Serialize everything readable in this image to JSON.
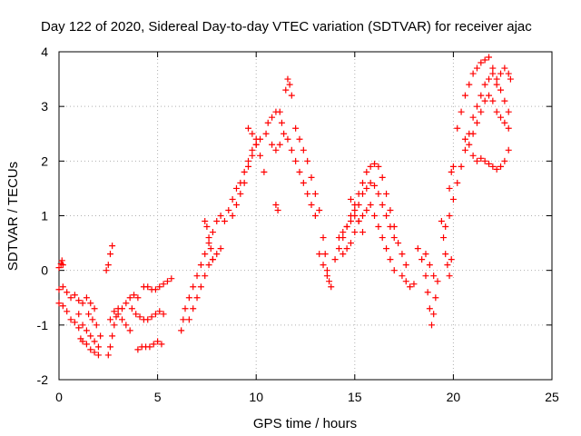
{
  "chart_data": {
    "type": "scatter",
    "title": "Day 122 of 2020, Sidereal Day-to-day VTEC variation (SDTVAR) for receiver ajac",
    "xlabel": "GPS time / hours",
    "ylabel": "SDTVAR / TECUs",
    "xlim": [
      0,
      25
    ],
    "ylim": [
      -2,
      4
    ],
    "xticks": [
      0,
      5,
      10,
      15,
      20,
      25
    ],
    "yticks": [
      -2,
      -1,
      0,
      1,
      2,
      3,
      4
    ],
    "xtick_labels": [
      "0",
      "5",
      "10",
      "15",
      "20",
      "25"
    ],
    "ytick_labels": [
      "-2",
      "-1",
      "0",
      "1",
      "2",
      "3",
      "4"
    ],
    "grid": true,
    "marker": "+",
    "color": "#ff0000",
    "series": [
      {
        "name": "SDTVAR",
        "points": [
          [
            0.0,
            0.05
          ],
          [
            0.1,
            0.12
          ],
          [
            0.15,
            0.18
          ],
          [
            0.2,
            0.1
          ],
          [
            0.0,
            -0.35
          ],
          [
            0.2,
            -0.3
          ],
          [
            0.4,
            -0.4
          ],
          [
            0.6,
            -0.5
          ],
          [
            0.8,
            -0.45
          ],
          [
            1.0,
            -0.55
          ],
          [
            1.2,
            -0.6
          ],
          [
            1.4,
            -0.5
          ],
          [
            1.6,
            -0.6
          ],
          [
            1.8,
            -0.7
          ],
          [
            0.0,
            -0.6
          ],
          [
            0.2,
            -0.65
          ],
          [
            0.4,
            -0.75
          ],
          [
            0.6,
            -0.9
          ],
          [
            0.8,
            -0.95
          ],
          [
            1.0,
            -1.05
          ],
          [
            1.1,
            -1.25
          ],
          [
            1.2,
            -1.3
          ],
          [
            1.4,
            -1.35
          ],
          [
            1.6,
            -1.45
          ],
          [
            1.8,
            -1.5
          ],
          [
            2.0,
            -1.55
          ],
          [
            1.0,
            -0.8
          ],
          [
            1.2,
            -1.0
          ],
          [
            1.4,
            -1.1
          ],
          [
            1.6,
            -1.2
          ],
          [
            1.8,
            -1.3
          ],
          [
            2.0,
            -1.4
          ],
          [
            1.5,
            -0.8
          ],
          [
            1.7,
            -0.9
          ],
          [
            1.9,
            -1.0
          ],
          [
            2.1,
            -1.2
          ],
          [
            2.4,
            0.0
          ],
          [
            2.5,
            0.1
          ],
          [
            2.6,
            0.3
          ],
          [
            2.7,
            0.45
          ],
          [
            2.5,
            -1.55
          ],
          [
            2.6,
            -1.4
          ],
          [
            2.7,
            -1.2
          ],
          [
            2.8,
            -1.0
          ],
          [
            2.9,
            -0.85
          ],
          [
            3.0,
            -0.8
          ],
          [
            3.2,
            -0.9
          ],
          [
            3.4,
            -1.0
          ],
          [
            3.6,
            -1.1
          ],
          [
            2.6,
            -0.9
          ],
          [
            2.8,
            -0.75
          ],
          [
            3.0,
            -0.7
          ],
          [
            3.2,
            -0.7
          ],
          [
            3.4,
            -0.6
          ],
          [
            3.6,
            -0.5
          ],
          [
            3.8,
            -0.45
          ],
          [
            4.0,
            -0.5
          ],
          [
            3.7,
            -0.7
          ],
          [
            3.9,
            -0.8
          ],
          [
            4.1,
            -0.85
          ],
          [
            4.3,
            -0.9
          ],
          [
            4.5,
            -0.9
          ],
          [
            4.7,
            -0.85
          ],
          [
            4.9,
            -0.8
          ],
          [
            5.1,
            -0.75
          ],
          [
            5.3,
            -0.8
          ],
          [
            4.0,
            -1.45
          ],
          [
            4.2,
            -1.4
          ],
          [
            4.4,
            -1.4
          ],
          [
            4.6,
            -1.4
          ],
          [
            4.8,
            -1.35
          ],
          [
            5.0,
            -1.3
          ],
          [
            5.2,
            -1.35
          ],
          [
            4.3,
            -0.3
          ],
          [
            4.5,
            -0.3
          ],
          [
            4.7,
            -0.35
          ],
          [
            4.9,
            -0.35
          ],
          [
            5.1,
            -0.3
          ],
          [
            5.3,
            -0.25
          ],
          [
            5.5,
            -0.2
          ],
          [
            5.7,
            -0.15
          ],
          [
            6.2,
            -1.1
          ],
          [
            6.3,
            -0.9
          ],
          [
            6.4,
            -0.7
          ],
          [
            6.6,
            -0.5
          ],
          [
            6.8,
            -0.3
          ],
          [
            7.0,
            -0.1
          ],
          [
            7.2,
            0.1
          ],
          [
            7.4,
            0.3
          ],
          [
            7.6,
            0.5
          ],
          [
            7.8,
            0.7
          ],
          [
            8.0,
            0.9
          ],
          [
            8.2,
            1.0
          ],
          [
            8.4,
            0.9
          ],
          [
            8.6,
            1.1
          ],
          [
            8.8,
            1.3
          ],
          [
            9.0,
            1.5
          ],
          [
            9.2,
            1.6
          ],
          [
            9.4,
            1.8
          ],
          [
            9.6,
            2.0
          ],
          [
            9.8,
            2.2
          ],
          [
            10.0,
            2.3
          ],
          [
            6.6,
            -0.9
          ],
          [
            6.8,
            -0.7
          ],
          [
            7.0,
            -0.5
          ],
          [
            7.2,
            -0.3
          ],
          [
            7.4,
            -0.1
          ],
          [
            7.6,
            0.1
          ],
          [
            7.8,
            0.2
          ],
          [
            8.0,
            0.3
          ],
          [
            8.2,
            0.4
          ],
          [
            7.4,
            0.9
          ],
          [
            7.5,
            0.8
          ],
          [
            7.6,
            0.6
          ],
          [
            7.7,
            0.4
          ],
          [
            7.8,
            0.2
          ],
          [
            8.8,
            1.0
          ],
          [
            9.0,
            1.2
          ],
          [
            9.2,
            1.4
          ],
          [
            9.4,
            1.6
          ],
          [
            9.6,
            1.9
          ],
          [
            9.8,
            2.1
          ],
          [
            10.0,
            2.4
          ],
          [
            10.2,
            2.4
          ],
          [
            9.6,
            2.6
          ],
          [
            9.8,
            2.5
          ],
          [
            10.0,
            2.3
          ],
          [
            10.2,
            2.1
          ],
          [
            10.4,
            1.8
          ],
          [
            10.5,
            2.5
          ],
          [
            10.6,
            2.7
          ],
          [
            10.8,
            2.8
          ],
          [
            11.0,
            2.9
          ],
          [
            11.2,
            2.9
          ],
          [
            11.3,
            2.7
          ],
          [
            10.8,
            2.3
          ],
          [
            11.0,
            2.2
          ],
          [
            11.2,
            2.3
          ],
          [
            11.4,
            2.5
          ],
          [
            11.6,
            2.4
          ],
          [
            11.8,
            2.2
          ],
          [
            12.0,
            2.0
          ],
          [
            12.2,
            1.8
          ],
          [
            12.4,
            1.6
          ],
          [
            12.6,
            1.4
          ],
          [
            12.8,
            1.2
          ],
          [
            13.0,
            1.0
          ],
          [
            11.5,
            3.3
          ],
          [
            11.6,
            3.5
          ],
          [
            11.7,
            3.4
          ],
          [
            11.8,
            3.2
          ],
          [
            11.0,
            1.2
          ],
          [
            11.1,
            1.1
          ],
          [
            12.0,
            2.6
          ],
          [
            12.2,
            2.4
          ],
          [
            12.4,
            2.2
          ],
          [
            12.6,
            2.0
          ],
          [
            12.8,
            1.7
          ],
          [
            13.0,
            1.4
          ],
          [
            13.2,
            1.1
          ],
          [
            13.4,
            0.6
          ],
          [
            13.5,
            0.3
          ],
          [
            13.6,
            0.0
          ],
          [
            13.7,
            -0.2
          ],
          [
            13.8,
            -0.3
          ],
          [
            13.2,
            0.3
          ],
          [
            13.4,
            0.1
          ],
          [
            13.6,
            -0.1
          ],
          [
            14.0,
            0.2
          ],
          [
            14.2,
            0.4
          ],
          [
            14.4,
            0.6
          ],
          [
            14.6,
            0.8
          ],
          [
            14.8,
            1.0
          ],
          [
            15.0,
            1.2
          ],
          [
            15.2,
            1.4
          ],
          [
            15.4,
            1.6
          ],
          [
            15.6,
            1.8
          ],
          [
            15.8,
            1.9
          ],
          [
            16.0,
            1.95
          ],
          [
            16.2,
            1.9
          ],
          [
            16.4,
            1.7
          ],
          [
            16.6,
            1.4
          ],
          [
            16.8,
            1.1
          ],
          [
            17.0,
            0.8
          ],
          [
            17.2,
            0.5
          ],
          [
            17.4,
            0.3
          ],
          [
            17.6,
            0.1
          ],
          [
            14.2,
            0.6
          ],
          [
            14.4,
            0.7
          ],
          [
            14.6,
            0.8
          ],
          [
            14.8,
            0.9
          ],
          [
            15.0,
            1.0
          ],
          [
            15.2,
            1.2
          ],
          [
            15.4,
            1.4
          ],
          [
            15.6,
            1.5
          ],
          [
            15.8,
            1.6
          ],
          [
            16.0,
            1.55
          ],
          [
            16.2,
            1.4
          ],
          [
            16.4,
            1.2
          ],
          [
            16.6,
            1.0
          ],
          [
            16.8,
            0.8
          ],
          [
            17.0,
            0.6
          ],
          [
            14.4,
            0.3
          ],
          [
            14.6,
            0.4
          ],
          [
            14.8,
            0.5
          ],
          [
            15.0,
            0.7
          ],
          [
            15.2,
            0.9
          ],
          [
            15.4,
            1.0
          ],
          [
            15.6,
            1.1
          ],
          [
            15.8,
            1.2
          ],
          [
            16.0,
            1.0
          ],
          [
            16.2,
            0.8
          ],
          [
            16.4,
            0.6
          ],
          [
            16.6,
            0.4
          ],
          [
            16.8,
            0.2
          ],
          [
            17.0,
            0.0
          ],
          [
            14.8,
            1.3
          ],
          [
            15.0,
            1.1
          ],
          [
            15.2,
            0.9
          ],
          [
            15.4,
            0.7
          ],
          [
            17.4,
            -0.1
          ],
          [
            17.6,
            -0.2
          ],
          [
            17.8,
            -0.3
          ],
          [
            18.0,
            -0.25
          ],
          [
            18.2,
            0.4
          ],
          [
            18.4,
            0.2
          ],
          [
            18.6,
            -0.1
          ],
          [
            18.7,
            -0.4
          ],
          [
            18.8,
            -0.7
          ],
          [
            18.9,
            -1.0
          ],
          [
            19.0,
            -0.8
          ],
          [
            19.1,
            -0.5
          ],
          [
            19.2,
            -0.2
          ],
          [
            18.6,
            0.3
          ],
          [
            18.8,
            0.1
          ],
          [
            19.0,
            -0.1
          ],
          [
            19.5,
            0.6
          ],
          [
            19.6,
            0.3
          ],
          [
            19.7,
            0.1
          ],
          [
            19.8,
            -0.1
          ],
          [
            19.9,
            0.2
          ],
          [
            19.4,
            0.9
          ],
          [
            19.6,
            0.8
          ],
          [
            19.8,
            1.0
          ],
          [
            20.0,
            1.3
          ],
          [
            20.2,
            1.6
          ],
          [
            20.4,
            1.9
          ],
          [
            20.6,
            2.2
          ],
          [
            20.8,
            2.5
          ],
          [
            21.0,
            2.8
          ],
          [
            21.2,
            3.0
          ],
          [
            21.4,
            3.2
          ],
          [
            21.6,
            3.4
          ],
          [
            21.8,
            3.5
          ],
          [
            22.0,
            3.6
          ],
          [
            22.2,
            3.4
          ],
          [
            19.8,
            1.5
          ],
          [
            19.9,
            1.8
          ],
          [
            20.0,
            1.9
          ],
          [
            20.2,
            2.6
          ],
          [
            20.4,
            2.9
          ],
          [
            20.6,
            3.2
          ],
          [
            20.8,
            3.4
          ],
          [
            21.0,
            3.6
          ],
          [
            21.2,
            3.7
          ],
          [
            21.4,
            3.8
          ],
          [
            21.6,
            3.85
          ],
          [
            21.8,
            3.9
          ],
          [
            22.0,
            3.7
          ],
          [
            22.2,
            3.5
          ],
          [
            22.4,
            3.3
          ],
          [
            22.6,
            3.1
          ],
          [
            22.8,
            2.9
          ],
          [
            21.0,
            2.1
          ],
          [
            21.2,
            2.0
          ],
          [
            21.4,
            2.05
          ],
          [
            21.6,
            2.0
          ],
          [
            21.8,
            1.95
          ],
          [
            22.0,
            1.9
          ],
          [
            22.2,
            1.85
          ],
          [
            22.4,
            1.9
          ],
          [
            22.6,
            2.0
          ],
          [
            22.8,
            2.2
          ],
          [
            20.6,
            2.4
          ],
          [
            20.8,
            2.3
          ],
          [
            21.0,
            2.5
          ],
          [
            21.2,
            2.7
          ],
          [
            21.4,
            2.9
          ],
          [
            21.6,
            3.1
          ],
          [
            21.8,
            3.2
          ],
          [
            22.0,
            3.1
          ],
          [
            22.2,
            2.9
          ],
          [
            22.4,
            2.8
          ],
          [
            22.6,
            2.7
          ],
          [
            22.8,
            2.6
          ],
          [
            22.4,
            3.6
          ],
          [
            22.6,
            3.7
          ],
          [
            22.8,
            3.6
          ],
          [
            22.9,
            3.5
          ]
        ]
      }
    ]
  }
}
